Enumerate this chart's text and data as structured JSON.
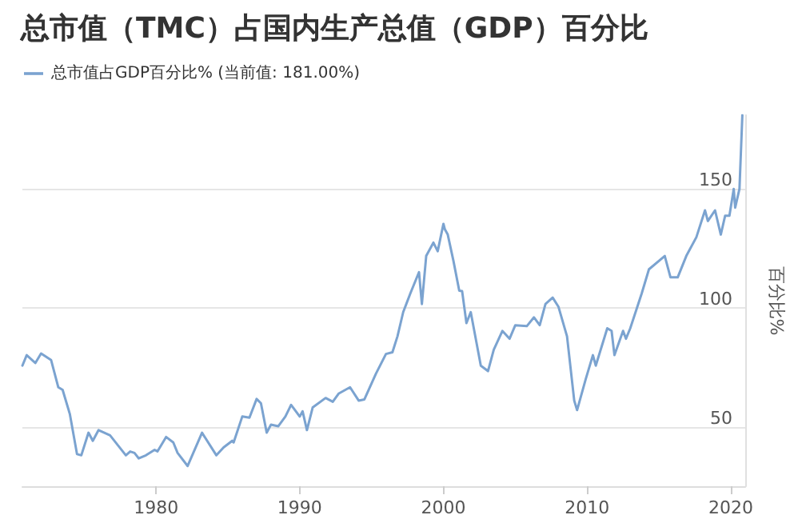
{
  "chart_data": {
    "type": "line",
    "title": "总市值（TMC）占国内生产总值（GDP）百分比",
    "ylabel": "百分比%",
    "x": [
      1970.7,
      1971.0,
      1971.6,
      1972.0,
      1972.7,
      1973.2,
      1973.5,
      1974.0,
      1974.5,
      1974.8,
      1975.3,
      1975.6,
      1976.0,
      1976.8,
      1977.9,
      1978.2,
      1978.5,
      1978.8,
      1979.3,
      1979.9,
      1980.1,
      1980.7,
      1981.2,
      1981.5,
      1982.2,
      1983.2,
      1984.2,
      1984.7,
      1985.3,
      1985.4,
      1986.0,
      1986.5,
      1987.0,
      1987.3,
      1987.7,
      1988.0,
      1988.5,
      1989.0,
      1989.4,
      1990.0,
      1990.2,
      1990.5,
      1990.9,
      1991.8,
      1992.3,
      1992.7,
      1993.5,
      1994.1,
      1994.5,
      1995.3,
      1996.0,
      1996.45,
      1996.8,
      1997.2,
      1997.7,
      1998.3,
      1998.5,
      1998.8,
      1999.3,
      1999.6,
      2000.0,
      2000.1,
      2000.3,
      2000.7,
      2001.1,
      2001.3,
      2001.6,
      2001.9,
      2002.6,
      2003.1,
      2003.5,
      2004.1,
      2004.6,
      2005.0,
      2005.8,
      2006.3,
      2006.7,
      2007.1,
      2007.6,
      2008.0,
      2008.6,
      2009.1,
      2009.3,
      2009.9,
      2010.4,
      2010.6,
      2011.4,
      2011.7,
      2011.9,
      2012.5,
      2012.7,
      2013.0,
      2013.8,
      2014.3,
      2015.4,
      2015.8,
      2016.3,
      2016.9,
      2017.6,
      2018.2,
      2018.4,
      2018.9,
      2019.3,
      2019.6,
      2019.9,
      2020.2,
      2020.3,
      2020.6,
      2020.8
    ],
    "series": [
      {
        "name": "总市值占GDP百分比% (当前值: 181.00%)",
        "color": "#7ba3d0",
        "values": [
          75.7,
          80.1,
          76.8,
          80.8,
          78,
          66.6,
          65.5,
          55.4,
          38.5,
          38,
          47.5,
          44.1,
          48.6,
          46.4,
          38,
          39.6,
          39,
          36.7,
          38,
          40.3,
          39.6,
          45.7,
          43.4,
          39,
          33.5,
          47.5,
          38,
          41.3,
          44.1,
          43.4,
          54.3,
          53.8,
          61.7,
          59.9,
          47.5,
          50.9,
          50.2,
          54.3,
          59.2,
          54.3,
          56.5,
          48.6,
          58.1,
          62.1,
          60.5,
          63.9,
          66.6,
          61,
          61.5,
          72.3,
          80.6,
          81.3,
          88,
          98.2,
          106.1,
          115,
          101.6,
          121.8,
          127.4,
          123.8,
          135.3,
          133,
          130.8,
          119.6,
          107.2,
          107,
          93.6,
          98.2,
          75.7,
          73.4,
          82.4,
          90.3,
          87,
          92.7,
          92.3,
          96,
          92.7,
          101.6,
          104.3,
          100.5,
          88,
          61,
          57,
          70,
          80.1,
          75.7,
          91.4,
          90.3,
          80.1,
          90.3,
          87,
          91.4,
          106.1,
          116.2,
          121.8,
          112.8,
          112.8,
          121.8,
          129.7,
          141,
          136.5,
          141,
          130.8,
          138.7,
          138.7,
          150,
          142.1,
          150,
          181
        ]
      }
    ],
    "xlim": [
      1970.7,
      2021
    ],
    "xticks": [
      1980,
      1990,
      2000,
      2010,
      2020
    ],
    "ylim": [
      25,
      181
    ],
    "yticks": [
      50,
      100,
      150
    ],
    "grid": "y",
    "legend": "top left",
    "marker": "none",
    "line_style": "solid"
  }
}
